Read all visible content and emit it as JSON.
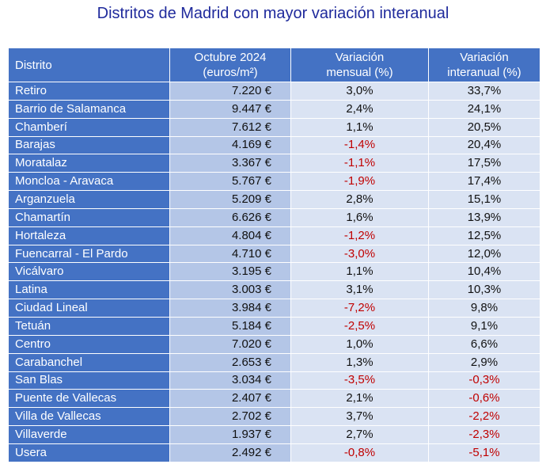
{
  "title": "Distritos de Madrid con mayor variación interanual",
  "columns": {
    "district": "Distrito",
    "price_line1": "Octubre 2024",
    "price_line2": "(euros/m²)",
    "monthly_line1": "Variación",
    "monthly_line2": "mensual (%)",
    "annual_line1": "Variación",
    "annual_line2": "interanual (%)"
  },
  "colors": {
    "header_bg": "#4472c4",
    "price_bg": "#b4c6e7",
    "var_bg": "#dae3f3",
    "negative": "#c00000"
  },
  "rows": [
    {
      "district": "Retiro",
      "price": "7.220 €",
      "monthly": "3,0%",
      "annual": "33,7%"
    },
    {
      "district": "Barrio de Salamanca",
      "price": "9.447 €",
      "monthly": "2,4%",
      "annual": "24,1%"
    },
    {
      "district": "Chamberí",
      "price": "7.612 €",
      "monthly": "1,1%",
      "annual": "20,5%"
    },
    {
      "district": "Barajas",
      "price": "4.169 €",
      "monthly": "-1,4%",
      "annual": "20,4%"
    },
    {
      "district": "Moratalaz",
      "price": "3.367 €",
      "monthly": "-1,1%",
      "annual": "17,5%"
    },
    {
      "district": "Moncloa - Aravaca",
      "price": "5.767 €",
      "monthly": "-1,9%",
      "annual": "17,4%"
    },
    {
      "district": "Arganzuela",
      "price": "5.209 €",
      "monthly": "2,8%",
      "annual": "15,1%"
    },
    {
      "district": "Chamartín",
      "price": "6.626 €",
      "monthly": "1,6%",
      "annual": "13,9%"
    },
    {
      "district": "Hortaleza",
      "price": "4.804 €",
      "monthly": "-1,2%",
      "annual": "12,5%"
    },
    {
      "district": "Fuencarral - El Pardo",
      "price": "4.710 €",
      "monthly": "-3,0%",
      "annual": "12,0%"
    },
    {
      "district": "Vicálvaro",
      "price": "3.195 €",
      "monthly": "1,1%",
      "annual": "10,4%"
    },
    {
      "district": "Latina",
      "price": "3.003 €",
      "monthly": "3,1%",
      "annual": "10,3%"
    },
    {
      "district": "Ciudad Lineal",
      "price": "3.984 €",
      "monthly": "-7,2%",
      "annual": "9,8%"
    },
    {
      "district": "Tetuán",
      "price": "5.184 €",
      "monthly": "-2,5%",
      "annual": "9,1%"
    },
    {
      "district": "Centro",
      "price": "7.020 €",
      "monthly": "1,0%",
      "annual": "6,6%"
    },
    {
      "district": "Carabanchel",
      "price": "2.653 €",
      "monthly": "1,3%",
      "annual": "2,9%"
    },
    {
      "district": "San Blas",
      "price": "3.034 €",
      "monthly": "-3,5%",
      "annual": "-0,3%"
    },
    {
      "district": "Puente de Vallecas",
      "price": "2.407 €",
      "monthly": "2,1%",
      "annual": "-0,6%"
    },
    {
      "district": "Villa de Vallecas",
      "price": "2.702 €",
      "monthly": "3,7%",
      "annual": "-2,2%"
    },
    {
      "district": "Villaverde",
      "price": "1.937 €",
      "monthly": "2,7%",
      "annual": "-2,3%"
    },
    {
      "district": "Usera",
      "price": "2.492 €",
      "monthly": "-0,8%",
      "annual": "-5,1%"
    }
  ]
}
